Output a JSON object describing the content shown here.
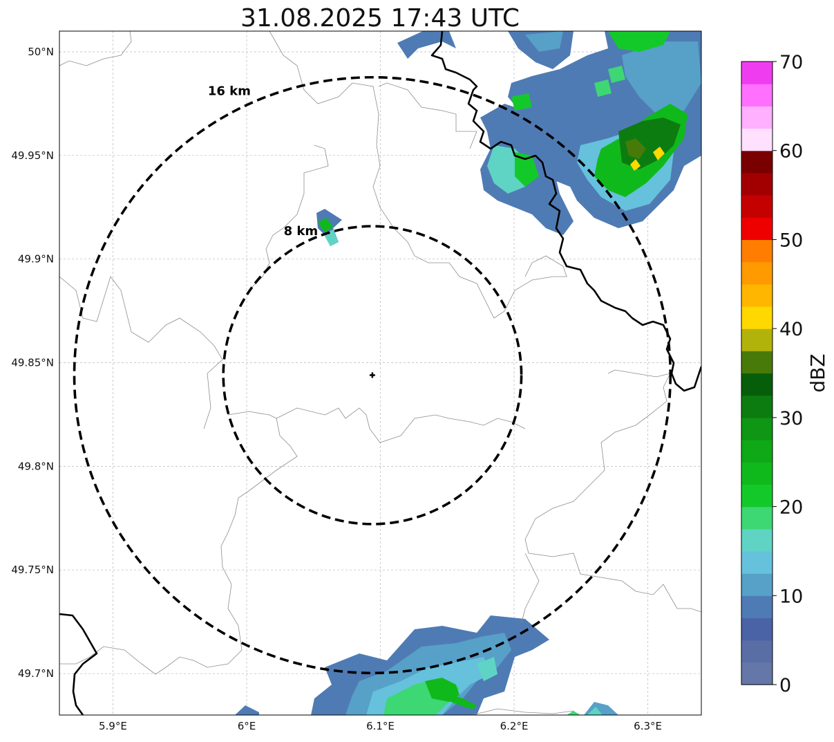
{
  "title": "31.08.2025 17:43 UTC",
  "map": {
    "lon_range": [
      5.86,
      6.34
    ],
    "lat_range": [
      49.68,
      50.01
    ],
    "lat_ticks": [
      {
        "value": 50.0,
        "label": "50°N"
      },
      {
        "value": 49.95,
        "label": "49.95°N"
      },
      {
        "value": 49.9,
        "label": "49.9°N"
      },
      {
        "value": 49.85,
        "label": "49.85°N"
      },
      {
        "value": 49.8,
        "label": "49.8°N"
      },
      {
        "value": 49.75,
        "label": "49.75°N"
      },
      {
        "value": 49.7,
        "label": "49.7°N"
      }
    ],
    "lon_ticks": [
      {
        "value": 5.9,
        "label": "5.9°E"
      },
      {
        "value": 6.0,
        "label": "6°E"
      },
      {
        "value": 6.1,
        "label": "6.1°E"
      },
      {
        "value": 6.2,
        "label": "6.2°E"
      },
      {
        "value": 6.3,
        "label": "6.3°E"
      }
    ],
    "radar_center": {
      "lon": 6.094,
      "lat": 49.844
    },
    "range_rings": [
      {
        "radius_km": 8,
        "label": "8 km"
      },
      {
        "radius_km": 16,
        "label": "16 km"
      }
    ],
    "gridlines": true
  },
  "colorbar": {
    "label": "dBZ",
    "min": 0,
    "max": 70,
    "step": 2.5,
    "tick_labels": [
      "0",
      "10",
      "20",
      "30",
      "40",
      "50",
      "60",
      "70"
    ],
    "colors": [
      "#6477a8",
      "#5a6ea6",
      "#4a62a6",
      "#4f7bb4",
      "#57a0c8",
      "#66c1dc",
      "#5fd4c4",
      "#3dd774",
      "#13c92a",
      "#10b91b",
      "#0fa816",
      "#0f9614",
      "#0c7c10",
      "#075e0a",
      "#487a0a",
      "#b1b30a",
      "#ffd800",
      "#ffb600",
      "#ff9a00",
      "#ff7d00",
      "#ee0000",
      "#c40000",
      "#a20000",
      "#7a0000",
      "#ffe0ff",
      "#ffb0ff",
      "#ff70ff",
      "#f03cf0"
    ]
  },
  "colors": {
    "ring": "#000000",
    "border": "#000000",
    "admin": "#8c8c8c",
    "grid": "#b5b5b5"
  }
}
